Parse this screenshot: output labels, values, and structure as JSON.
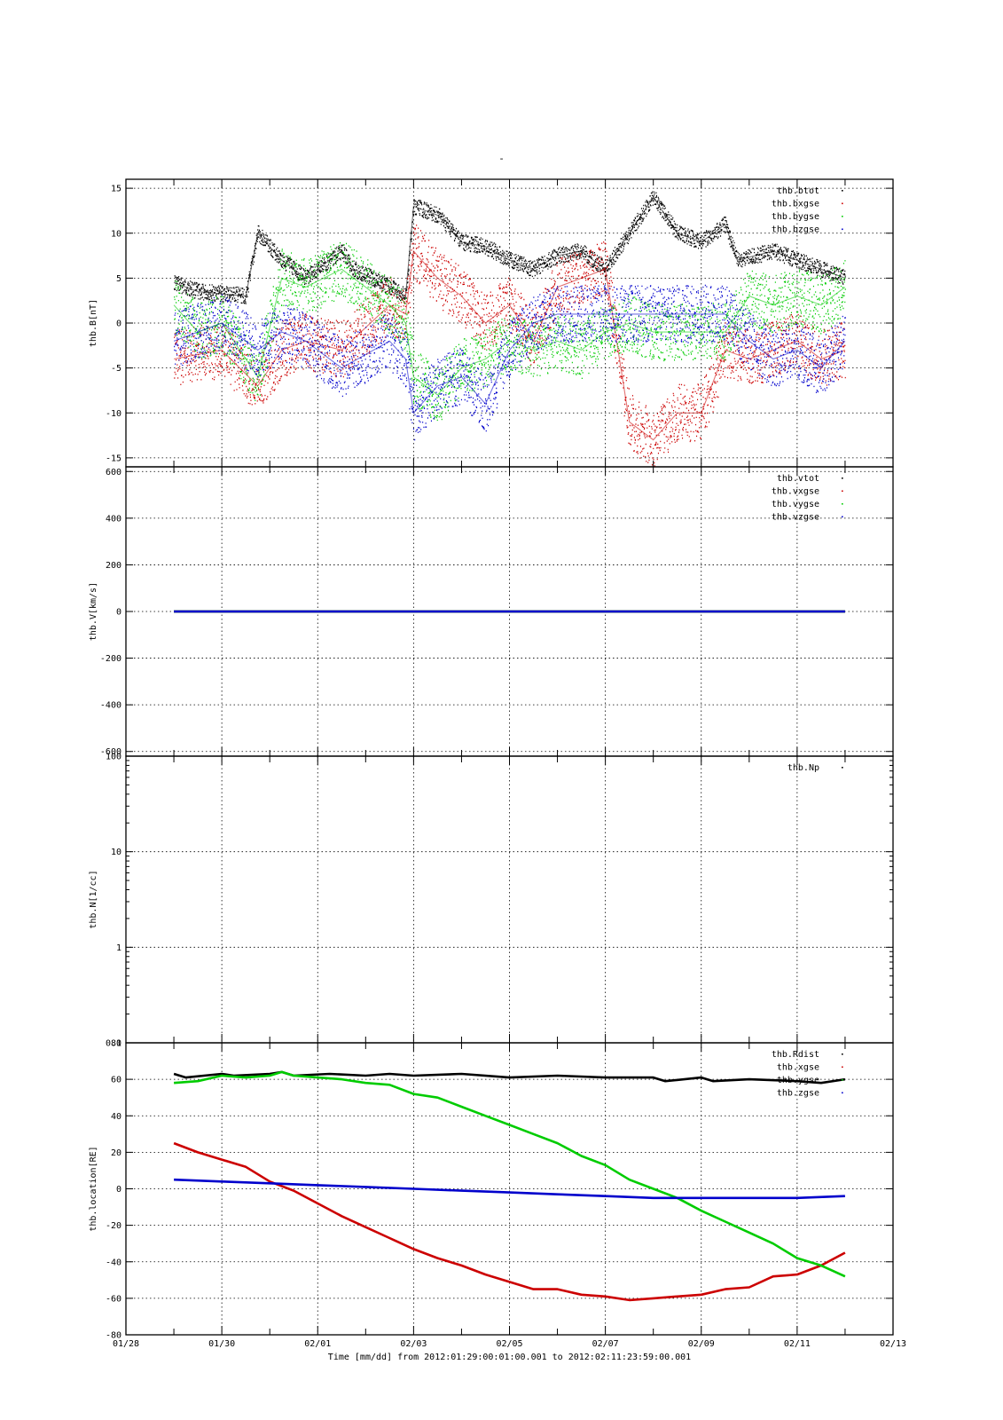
{
  "title": "-",
  "x_axis": {
    "start": "01/28",
    "end": "02/13",
    "tick_labels": [
      "01/28",
      "01/30",
      "02/01",
      "02/03",
      "02/05",
      "02/07",
      "02/09",
      "02/11",
      "02/13"
    ],
    "label": "Time [mm/dd]  from 2012:01:29:00:01:00.001  to  2012:02:11:23:59:00.001"
  },
  "chart_data": [
    {
      "type": "scatter",
      "ylabel": "thb.B[nT]",
      "ylim": [
        -16,
        16
      ],
      "yticks": [
        15,
        10,
        5,
        0,
        -5,
        -10,
        -15
      ],
      "grid": true,
      "legend_position": "top-right",
      "series": [
        {
          "name": "thb.btot",
          "color": "#000000",
          "points": [
            [
              "01/29 00:00",
              4.5
            ],
            [
              "01/29 12:00",
              3.5
            ],
            [
              "01/30 12:00",
              3.0
            ],
            [
              "01/30 18:00",
              10
            ],
            [
              "01/31 06:00",
              7
            ],
            [
              "01/31 18:00",
              5
            ],
            [
              "02/01 12:00",
              8
            ],
            [
              "02/01 18:00",
              6
            ],
            [
              "02/02 12:00",
              4
            ],
            [
              "02/02 20:00",
              3
            ],
            [
              "02/03 00:00",
              13
            ],
            [
              "02/03 12:00",
              12
            ],
            [
              "02/04 00:00",
              9
            ],
            [
              "02/04 12:00",
              8.5
            ],
            [
              "02/05 00:00",
              7
            ],
            [
              "02/05 12:00",
              6
            ],
            [
              "02/06 00:00",
              7.5
            ],
            [
              "02/06 12:00",
              8
            ],
            [
              "02/07 00:00",
              6
            ],
            [
              "02/07 12:00",
              10
            ],
            [
              "02/08 00:00",
              14
            ],
            [
              "02/08 12:00",
              10
            ],
            [
              "02/09 00:00",
              9
            ],
            [
              "02/09 12:00",
              11
            ],
            [
              "02/09 18:00",
              7
            ],
            [
              "02/10 12:00",
              8
            ],
            [
              "02/11 00:00",
              7
            ],
            [
              "02/11 12:00",
              6
            ],
            [
              "02/12 00:00",
              5
            ]
          ]
        },
        {
          "name": "thb.bxgse",
          "color": "#cc0000",
          "points": [
            [
              "01/29 00:00",
              -4
            ],
            [
              "01/29 12:00",
              -3.5
            ],
            [
              "01/30 00:00",
              -3
            ],
            [
              "01/30 18:00",
              -7
            ],
            [
              "01/31 06:00",
              -3
            ],
            [
              "01/31 18:00",
              -2
            ],
            [
              "02/01 12:00",
              -3
            ],
            [
              "02/02 12:00",
              2
            ],
            [
              "02/02 20:00",
              1
            ],
            [
              "02/03 00:00",
              8
            ],
            [
              "02/03 12:00",
              5
            ],
            [
              "02/04 00:00",
              3
            ],
            [
              "02/04 12:00",
              0
            ],
            [
              "02/05 00:00",
              2
            ],
            [
              "02/05 12:00",
              -2
            ],
            [
              "02/06 00:00",
              4
            ],
            [
              "02/06 12:00",
              5
            ],
            [
              "02/07 00:00",
              6
            ],
            [
              "02/07 12:00",
              -11
            ],
            [
              "02/08 00:00",
              -13
            ],
            [
              "02/08 12:00",
              -10
            ],
            [
              "02/09 00:00",
              -10
            ],
            [
              "02/09 12:00",
              -3
            ],
            [
              "02/10 00:00",
              -4
            ],
            [
              "02/10 12:00",
              -3
            ],
            [
              "02/11 00:00",
              -2
            ],
            [
              "02/11 12:00",
              -4
            ],
            [
              "02/12 00:00",
              -3
            ]
          ]
        },
        {
          "name": "thb.bygse",
          "color": "#00cc00",
          "points": [
            [
              "01/29 00:00",
              2
            ],
            [
              "01/29 12:00",
              -1
            ],
            [
              "01/30 00:00",
              0
            ],
            [
              "01/30 18:00",
              -6
            ],
            [
              "01/31 06:00",
              5
            ],
            [
              "01/31 18:00",
              4
            ],
            [
              "02/01 12:00",
              6
            ],
            [
              "02/02 12:00",
              2
            ],
            [
              "02/02 20:00",
              0
            ],
            [
              "02/03 00:00",
              -6
            ],
            [
              "02/03 12:00",
              -8
            ],
            [
              "02/04 00:00",
              -5
            ],
            [
              "02/04 12:00",
              -4
            ],
            [
              "02/05 00:00",
              -2
            ],
            [
              "02/05 12:00",
              -3
            ],
            [
              "02/06 00:00",
              -2
            ],
            [
              "02/06 12:00",
              -3
            ],
            [
              "02/07 00:00",
              -1
            ],
            [
              "02/07 12:00",
              0
            ],
            [
              "02/08 00:00",
              -1
            ],
            [
              "02/08 12:00",
              -1
            ],
            [
              "02/09 00:00",
              -1
            ],
            [
              "02/09 12:00",
              -1
            ],
            [
              "02/10 00:00",
              3
            ],
            [
              "02/10 12:00",
              2
            ],
            [
              "02/11 00:00",
              3
            ],
            [
              "02/11 12:00",
              2
            ],
            [
              "02/12 00:00",
              4
            ]
          ]
        },
        {
          "name": "thb.bzgse",
          "color": "#0000cc",
          "points": [
            [
              "01/29 00:00",
              -2
            ],
            [
              "01/29 12:00",
              -1
            ],
            [
              "01/30 00:00",
              0
            ],
            [
              "01/30 18:00",
              -3
            ],
            [
              "01/31 06:00",
              -1
            ],
            [
              "01/31 18:00",
              -2
            ],
            [
              "02/01 12:00",
              -5
            ],
            [
              "02/02 12:00",
              -2
            ],
            [
              "02/02 20:00",
              -4
            ],
            [
              "02/03 00:00",
              -10
            ],
            [
              "02/03 12:00",
              -7
            ],
            [
              "02/04 00:00",
              -6
            ],
            [
              "02/04 12:00",
              -9
            ],
            [
              "02/05 00:00",
              -3
            ],
            [
              "02/05 12:00",
              0
            ],
            [
              "02/06 00:00",
              1
            ],
            [
              "02/06 12:00",
              1
            ],
            [
              "02/07 00:00",
              1
            ],
            [
              "02/07 12:00",
              1
            ],
            [
              "02/08 00:00",
              1
            ],
            [
              "02/08 12:00",
              1
            ],
            [
              "02/09 00:00",
              1
            ],
            [
              "02/09 12:00",
              1
            ],
            [
              "02/10 00:00",
              -2
            ],
            [
              "02/10 12:00",
              -4
            ],
            [
              "02/11 00:00",
              -3
            ],
            [
              "02/11 12:00",
              -5
            ],
            [
              "02/12 00:00",
              -2
            ]
          ]
        }
      ]
    },
    {
      "type": "scatter",
      "ylabel": "thb.V[km/s]",
      "ylim": [
        -620,
        620
      ],
      "yticks": [
        600,
        400,
        200,
        0,
        -200,
        -400,
        -600
      ],
      "grid": true,
      "legend_position": "top-right",
      "series": [
        {
          "name": "thb.vtot",
          "color": "#000000",
          "points": [
            [
              "01/29 00:00",
              0
            ],
            [
              "02/12 00:00",
              0
            ]
          ]
        },
        {
          "name": "thb.vxgse",
          "color": "#cc0000",
          "points": [
            [
              "01/29 00:00",
              0
            ],
            [
              "02/12 00:00",
              0
            ]
          ]
        },
        {
          "name": "thb.vygse",
          "color": "#00cc00",
          "points": [
            [
              "01/29 00:00",
              0
            ],
            [
              "02/12 00:00",
              0
            ]
          ]
        },
        {
          "name": "thb.vzgse",
          "color": "#0000cc",
          "points": [
            [
              "01/29 00:00",
              0
            ],
            [
              "02/12 00:00",
              0
            ]
          ]
        }
      ]
    },
    {
      "type": "scatter",
      "ylabel": "thb.N[1/cc]",
      "ylim": [
        0.1,
        100
      ],
      "yscale": "log",
      "yticks": [
        100,
        10,
        1,
        0.1
      ],
      "grid": true,
      "legend_position": "top-right",
      "series": [
        {
          "name": "thb.Np",
          "color": "#000000",
          "points": []
        }
      ]
    },
    {
      "type": "line",
      "ylabel": "thb.location[RE]",
      "ylim": [
        -80,
        80
      ],
      "yticks": [
        80,
        60,
        40,
        20,
        0,
        -20,
        -40,
        -60,
        -80
      ],
      "grid": true,
      "legend_position": "top-right",
      "series": [
        {
          "name": "thb.Rdist",
          "color": "#000000",
          "points": [
            [
              "01/29 00:00",
              63
            ],
            [
              "01/29 06:00",
              61
            ],
            [
              "01/30 00:00",
              63
            ],
            [
              "01/30 06:00",
              62
            ],
            [
              "01/31 00:00",
              63
            ],
            [
              "01/31 06:00",
              64
            ],
            [
              "01/31 12:00",
              62
            ],
            [
              "02/01 06:00",
              63
            ],
            [
              "02/02 00:00",
              62
            ],
            [
              "02/02 12:00",
              63
            ],
            [
              "02/03 00:00",
              62
            ],
            [
              "02/04 00:00",
              63
            ],
            [
              "02/05 00:00",
              61
            ],
            [
              "02/06 00:00",
              62
            ],
            [
              "02/07 00:00",
              61
            ],
            [
              "02/08 00:00",
              61
            ],
            [
              "02/08 06:00",
              59
            ],
            [
              "02/09 00:00",
              61
            ],
            [
              "02/09 06:00",
              59
            ],
            [
              "02/10 00:00",
              60
            ],
            [
              "02/11 00:00",
              59
            ],
            [
              "02/11 12:00",
              58
            ],
            [
              "02/12 00:00",
              60
            ]
          ]
        },
        {
          "name": "thb.xgse",
          "color": "#cc0000",
          "points": [
            [
              "01/29 00:00",
              25
            ],
            [
              "01/29 12:00",
              20
            ],
            [
              "01/30 00:00",
              16
            ],
            [
              "01/30 12:00",
              12
            ],
            [
              "01/31 00:00",
              4
            ],
            [
              "01/31 12:00",
              -1
            ],
            [
              "02/01 00:00",
              -8
            ],
            [
              "02/01 12:00",
              -15
            ],
            [
              "02/02 00:00",
              -21
            ],
            [
              "02/02 12:00",
              -27
            ],
            [
              "02/03 00:00",
              -33
            ],
            [
              "02/03 12:00",
              -38
            ],
            [
              "02/04 00:00",
              -42
            ],
            [
              "02/04 12:00",
              -47
            ],
            [
              "02/05 00:00",
              -51
            ],
            [
              "02/05 12:00",
              -55
            ],
            [
              "02/06 00:00",
              -55
            ],
            [
              "02/06 12:00",
              -58
            ],
            [
              "02/07 00:00",
              -59
            ],
            [
              "02/07 12:00",
              -61
            ],
            [
              "02/08 00:00",
              -60
            ],
            [
              "02/08 12:00",
              -59
            ],
            [
              "02/09 00:00",
              -58
            ],
            [
              "02/09 12:00",
              -55
            ],
            [
              "02/10 00:00",
              -54
            ],
            [
              "02/10 12:00",
              -48
            ],
            [
              "02/11 00:00",
              -47
            ],
            [
              "02/11 12:00",
              -42
            ],
            [
              "02/12 00:00",
              -35
            ]
          ]
        },
        {
          "name": "thb.ygse",
          "color": "#00cc00",
          "points": [
            [
              "01/29 00:00",
              58
            ],
            [
              "01/29 12:00",
              59
            ],
            [
              "01/30 00:00",
              62
            ],
            [
              "01/30 12:00",
              61
            ],
            [
              "01/31 00:00",
              62
            ],
            [
              "01/31 06:00",
              64
            ],
            [
              "01/31 12:00",
              62
            ],
            [
              "02/01 00:00",
              61
            ],
            [
              "02/01 12:00",
              60
            ],
            [
              "02/02 00:00",
              58
            ],
            [
              "02/02 12:00",
              57
            ],
            [
              "02/03 00:00",
              52
            ],
            [
              "02/03 12:00",
              50
            ],
            [
              "02/04 00:00",
              45
            ],
            [
              "02/04 12:00",
              40
            ],
            [
              "02/05 00:00",
              35
            ],
            [
              "02/05 12:00",
              30
            ],
            [
              "02/06 00:00",
              25
            ],
            [
              "02/06 12:00",
              18
            ],
            [
              "02/07 00:00",
              13
            ],
            [
              "02/07 12:00",
              5
            ],
            [
              "02/08 00:00",
              0
            ],
            [
              "02/08 12:00",
              -5
            ],
            [
              "02/09 00:00",
              -12
            ],
            [
              "02/09 12:00",
              -18
            ],
            [
              "02/10 00:00",
              -24
            ],
            [
              "02/10 12:00",
              -30
            ],
            [
              "02/11 00:00",
              -38
            ],
            [
              "02/11 12:00",
              -42
            ],
            [
              "02/12 00:00",
              -48
            ]
          ]
        },
        {
          "name": "thb.zgse",
          "color": "#0000cc",
          "points": [
            [
              "01/29 00:00",
              5
            ],
            [
              "01/30 00:00",
              4
            ],
            [
              "01/31 00:00",
              3
            ],
            [
              "02/01 00:00",
              2
            ],
            [
              "02/02 00:00",
              1
            ],
            [
              "02/03 00:00",
              0
            ],
            [
              "02/04 00:00",
              -1
            ],
            [
              "02/05 00:00",
              -2
            ],
            [
              "02/06 00:00",
              -3
            ],
            [
              "02/07 00:00",
              -4
            ],
            [
              "02/08 00:00",
              -5
            ],
            [
              "02/09 00:00",
              -5
            ],
            [
              "02/10 00:00",
              -5
            ],
            [
              "02/11 00:00",
              -5
            ],
            [
              "02/12 00:00",
              -4
            ]
          ]
        }
      ]
    }
  ]
}
